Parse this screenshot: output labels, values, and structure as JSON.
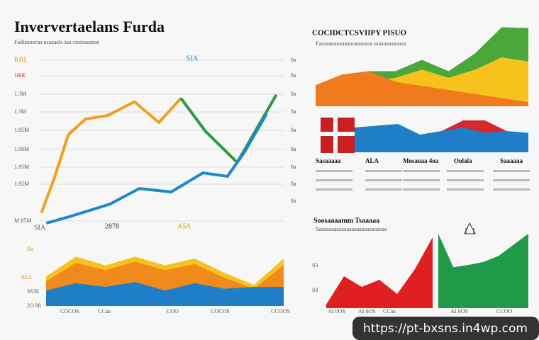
{
  "header": {
    "title": "Inververtaelans Furda",
    "subtitle": "Fadlaaoocas usaaaals saa cioosaaaraa"
  },
  "line_panel": {
    "top_label": "SIA",
    "left_labels": [
      "RBL",
      "18IK",
      "1.3M",
      "1.3M",
      "1.85M",
      "1.08M",
      "1.85M",
      "1.85M",
      "M:85M"
    ],
    "right_labels": [
      "8a",
      "8a",
      "8a",
      "8a",
      "8a",
      "8a",
      "8a",
      "8a",
      "8a"
    ],
    "bottom_labels": [
      "SIA",
      "2878",
      "A5A"
    ],
    "xlim": [
      0,
      100
    ],
    "ylim": [
      0,
      100
    ],
    "series": [
      {
        "color": "#f0a020",
        "x": [
          1,
          6,
          12,
          19,
          28,
          39,
          49,
          58
        ],
        "values": [
          8,
          27,
          53,
          62,
          64,
          72,
          60,
          74
        ]
      },
      {
        "color": "#2e9a3e",
        "x": [
          58,
          68,
          81,
          90,
          97
        ],
        "values": [
          74,
          55,
          37,
          59,
          76
        ]
      },
      {
        "color": "#1e88c8",
        "x": [
          3,
          13,
          29,
          41,
          54,
          67,
          77,
          84,
          93
        ],
        "values": [
          2,
          6,
          13,
          22,
          20,
          31,
          29,
          43,
          65
        ]
      }
    ]
  },
  "area_panel": {
    "left_labels": [
      "Ra",
      "8ZA",
      "NUB",
      "2O 88"
    ],
    "bottom_labels": [
      "COCOS",
      "CCaa",
      "COO",
      "COCOS",
      "CCOOS"
    ],
    "ylim": [
      0,
      100
    ],
    "series": [
      {
        "color": "#f7c21e",
        "values": [
          48,
          80,
          66,
          80,
          66,
          77,
          54,
          34,
          77
        ]
      },
      {
        "color": "#f08a1c",
        "values": [
          40,
          70,
          58,
          72,
          58,
          68,
          46,
          28,
          66
        ]
      },
      {
        "color": "#1e7fc8",
        "values": [
          25,
          37,
          31,
          39,
          25,
          37,
          28,
          31,
          31
        ]
      }
    ]
  },
  "top_right": {
    "title": "COCIDCTCSVIIPY PISUO",
    "subtitle": "Fasaaaoaoaaaaaoaaaaaaa saaaaaaaaaaaa",
    "ylim": [
      0,
      100
    ],
    "series": [
      {
        "color": "#4aa83a",
        "values": [
          26,
          37,
          43,
          43,
          57,
          43,
          65,
          97,
          96
        ]
      },
      {
        "color": "#f7c21e",
        "values": [
          15,
          25,
          30,
          35,
          45,
          35,
          45,
          60,
          55
        ]
      },
      {
        "color": "#f07a1c",
        "values": [
          26,
          39,
          43,
          30,
          25,
          20,
          15,
          10,
          5
        ]
      }
    ],
    "band": [
      {
        "color": "#d62828",
        "values": [
          0,
          0,
          0,
          0,
          60,
          90,
          90,
          60,
          40
        ]
      },
      {
        "color": "#1e7fc8",
        "values": [
          70,
          75,
          80,
          50,
          60,
          70,
          55,
          60,
          55
        ]
      }
    ],
    "columns": [
      "Sasaaaaa",
      "ALA",
      "Mosaoaa 4oa",
      "Oolala",
      "Saaaaaa"
    ]
  },
  "bottom_right": {
    "title": "Soosaaaamm Tsaaaaa",
    "subtitle": "Saaaaaaaaaaaaaaaaaaaaaaaaaaa",
    "left_labels": [
      "S3",
      "S8"
    ],
    "ylim": [
      0,
      100
    ],
    "series": [
      {
        "color": "#e02020",
        "values": [
          5,
          45,
          30,
          40,
          20,
          55,
          100
        ]
      },
      {
        "color": "#1f9a48",
        "values": [
          100,
          55,
          58,
          62,
          70,
          85,
          100
        ]
      }
    ],
    "bottom_labels": [
      "AI 0OS",
      "AI 0OS",
      "CCaa",
      "AI 0OS",
      "CCOO"
    ]
  },
  "url": "https://pt-bxsns.in4wp.com"
}
